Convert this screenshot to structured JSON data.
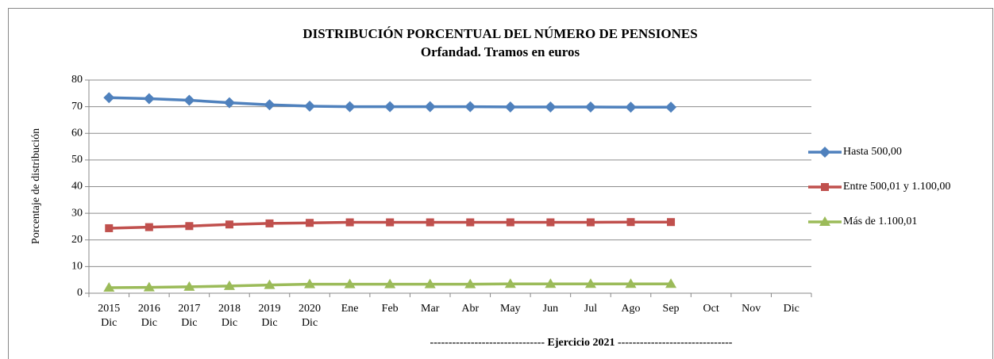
{
  "chart_data": {
    "type": "line",
    "title": "DISTRIBUCIÓN PORCENTUAL DEL NÚMERO DE PENSIONES",
    "subtitle": "Orfandad. Tramos en euros",
    "y_label": "Porcentaje de distribución",
    "annotation": "------------------------------- Ejercicio 2021 -------------------------------",
    "categories": [
      [
        "2015",
        "Dic"
      ],
      [
        "2016",
        "Dic"
      ],
      [
        "2017",
        "Dic"
      ],
      [
        "2018",
        "Dic"
      ],
      [
        "2019",
        "Dic"
      ],
      [
        "2020",
        "Dic"
      ],
      [
        "Ene"
      ],
      [
        "Feb"
      ],
      [
        "Mar"
      ],
      [
        "Abr"
      ],
      [
        "May"
      ],
      [
        "Jun"
      ],
      [
        "Jul"
      ],
      [
        "Ago"
      ],
      [
        "Sep"
      ],
      [
        "Oct"
      ],
      [
        "Nov"
      ],
      [
        "Dic"
      ]
    ],
    "series": [
      {
        "name": "Hasta 500,00",
        "color": "#4f81bd",
        "marker": "diamond",
        "values": [
          73.4,
          73.0,
          72.4,
          71.5,
          70.7,
          70.2,
          70.0,
          70.0,
          70.0,
          70.0,
          69.9,
          69.9,
          69.9,
          69.8,
          69.8,
          null,
          null,
          null
        ]
      },
      {
        "name": "Entre 500,01 y 1.100,00",
        "color": "#c0504d",
        "marker": "square",
        "values": [
          24.4,
          24.8,
          25.2,
          25.8,
          26.2,
          26.4,
          26.6,
          26.6,
          26.6,
          26.6,
          26.6,
          26.6,
          26.6,
          26.7,
          26.7,
          null,
          null,
          null
        ]
      },
      {
        "name": "Más de 1.100,01",
        "color": "#9bbb59",
        "marker": "triangle",
        "values": [
          2.1,
          2.2,
          2.4,
          2.7,
          3.1,
          3.4,
          3.4,
          3.4,
          3.4,
          3.4,
          3.5,
          3.5,
          3.5,
          3.5,
          3.5,
          null,
          null,
          null
        ]
      }
    ],
    "ylim": [
      0,
      80
    ],
    "yticks": [
      0,
      10,
      20,
      30,
      40,
      50,
      60,
      70,
      80
    ],
    "grid": true,
    "legend": "right"
  }
}
